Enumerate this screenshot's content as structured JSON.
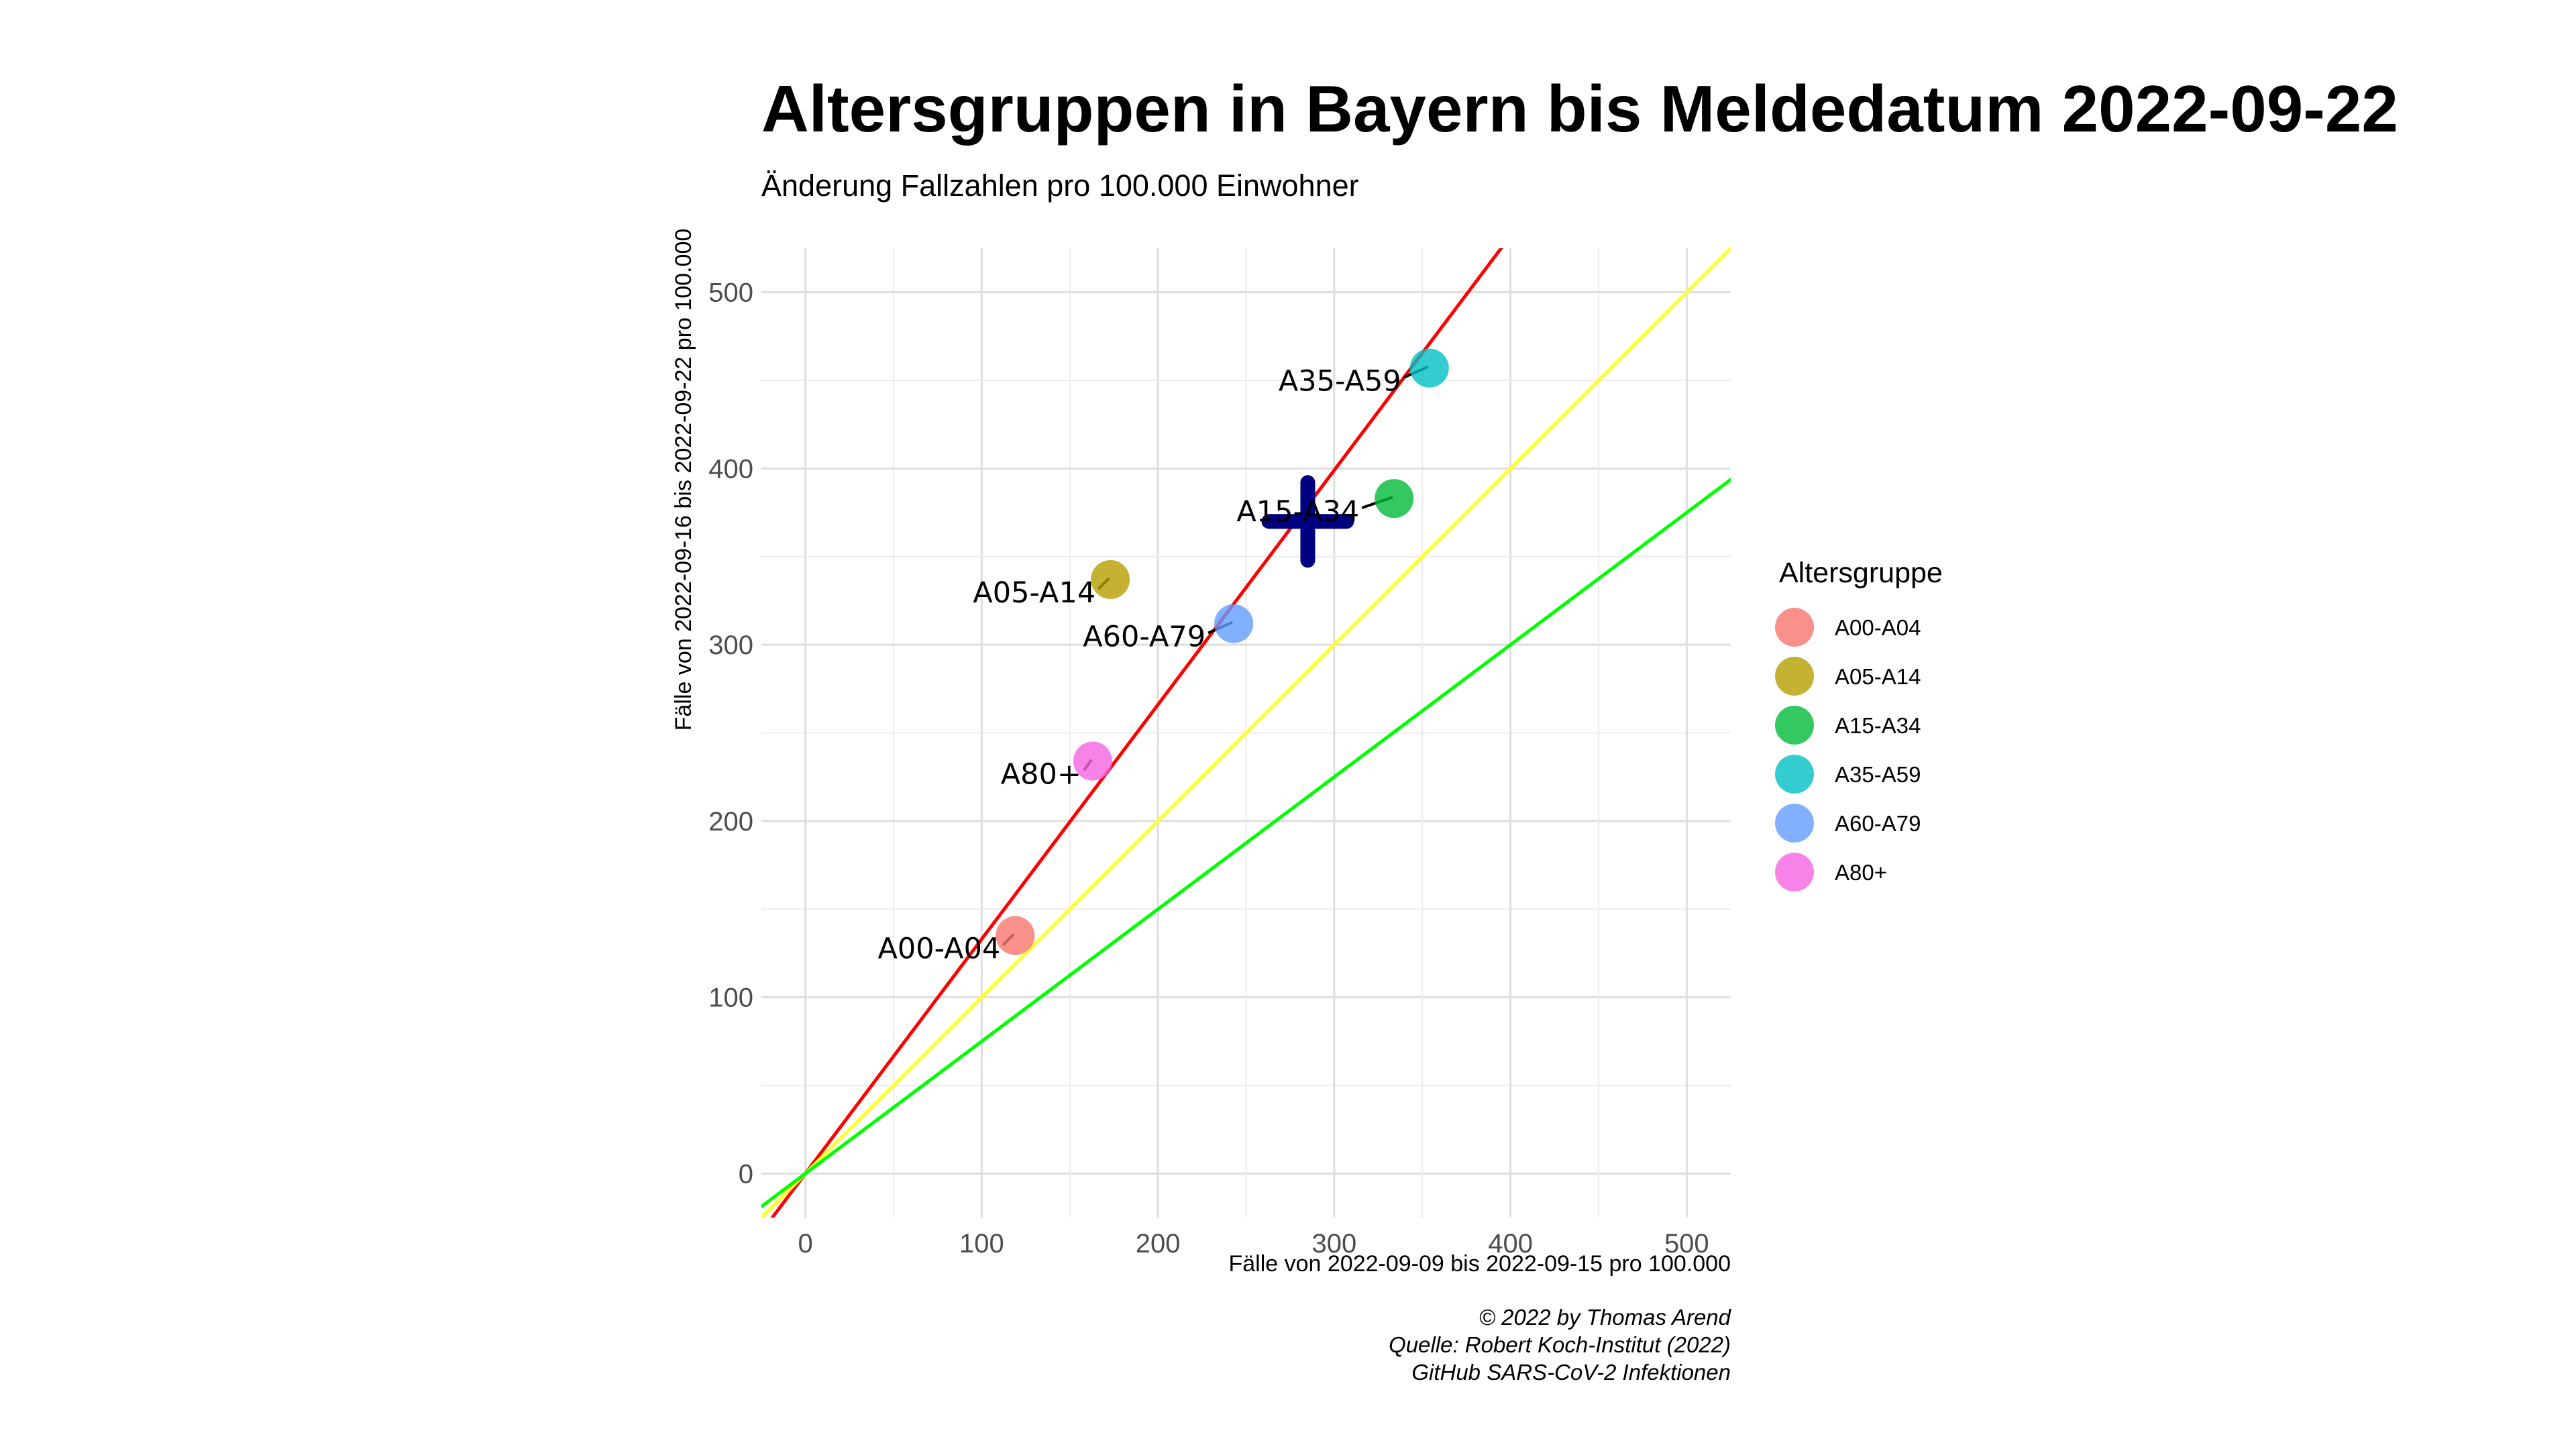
{
  "chart_data": {
    "type": "scatter",
    "title": "Altersgruppen in Bayern bis Meldedatum 2022-09-22",
    "subtitle": "Änderung Fallzahlen pro 100.000 Einwohner",
    "xlabel": "Fälle von 2022-09-09 bis 2022-09-15 pro 100.000",
    "ylabel": "Fälle von 2022-09-16 bis 2022-09-22 pro 100.000",
    "xlim": [
      -25,
      525
    ],
    "ylim": [
      -25,
      525
    ],
    "x_ticks": [
      0,
      100,
      200,
      300,
      400,
      500
    ],
    "y_ticks": [
      0,
      100,
      200,
      300,
      400,
      500
    ],
    "grid": true,
    "legend": {
      "title": "Altersgruppe",
      "position": "right"
    },
    "points": [
      {
        "name": "A00-A04",
        "x": 119,
        "y": 135,
        "color": "#F8766D"
      },
      {
        "name": "A05-A14",
        "x": 173,
        "y": 337,
        "color": "#B79F00"
      },
      {
        "name": "A15-A34",
        "x": 334,
        "y": 383,
        "color": "#00BA38"
      },
      {
        "name": "A35-A59",
        "x": 354,
        "y": 457,
        "color": "#00BFC4"
      },
      {
        "name": "A60-A79",
        "x": 243,
        "y": 312,
        "color": "#619CFF"
      },
      {
        "name": "A80+",
        "x": 163,
        "y": 234,
        "color": "#F564E3"
      }
    ],
    "mean_marker": {
      "x": 285,
      "y": 370,
      "shape": "cross",
      "color": "#000080"
    },
    "reference_lines": [
      {
        "slope": 1.33,
        "color": "#FF0000"
      },
      {
        "slope": 1.0,
        "color": "#FFFF33"
      },
      {
        "slope": 0.75,
        "color": "#00FF00"
      }
    ],
    "caption": [
      "© 2022 by Thomas Arend",
      "Quelle: Robert Koch-Institut (2022)",
      "GitHub SARS-CoV-2 Infektionen"
    ]
  }
}
